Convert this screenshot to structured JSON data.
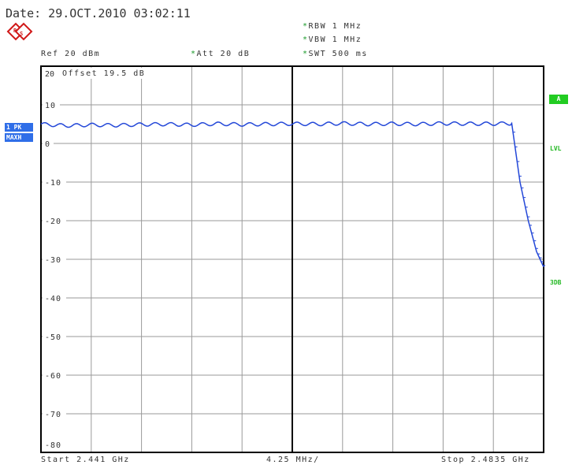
{
  "header": {
    "date": "Date: 29.OCT.2010  03:02:11",
    "rbw": "RBW 1 MHz",
    "vbw": "VBW 1 MHz",
    "swt": "SWT 500 ms",
    "ref": "Ref  20 dBm",
    "att": "Att  20 dB",
    "star": "*"
  },
  "left_panel": {
    "trace_label": "1 PK",
    "mode_label": "MAXH"
  },
  "right_panel": {
    "a_label": "A",
    "lvl_label": "LVL",
    "threedb_label": "3DB"
  },
  "footer": {
    "start": "Start 2.441 GHz",
    "span": "4.25 MHz/",
    "stop": "Stop 2.4835 GHz"
  },
  "colors": {
    "trace": "#2448d8",
    "grid": "#999999",
    "frame": "#000000",
    "badge": "#2f6ee8",
    "green": "#22b822"
  },
  "chart_data": {
    "type": "line",
    "title": "",
    "offset_label": "Offset  19.5 dB",
    "xlabel": "",
    "ylabel": "",
    "ylim": [
      -80,
      20
    ],
    "xlim": [
      2.441,
      2.4835
    ],
    "x_unit": "GHz",
    "yticks": [
      "20",
      "10",
      "0",
      "-10",
      "-20",
      "-30",
      "-40",
      "-50",
      "-60",
      "-70",
      "-80"
    ],
    "grid": true,
    "series": [
      {
        "x": [
          2.441,
          2.4431,
          2.4452,
          2.4474,
          2.4495,
          2.4516,
          2.4537,
          2.4559,
          2.458,
          2.4601,
          2.4622,
          2.4644,
          2.4665,
          2.4686,
          2.4707,
          2.4729,
          2.475,
          2.4771,
          2.4792,
          2.4808,
          2.4815,
          2.4822,
          2.4829,
          2.4835
        ],
        "y": [
          5.0,
          4.6,
          4.8,
          4.7,
          4.9,
          5.0,
          4.8,
          5.1,
          4.9,
          5.0,
          5.1,
          5.0,
          5.2,
          5.0,
          5.1,
          5.0,
          5.2,
          5.1,
          5.1,
          5.2,
          -10.0,
          -20.0,
          -28.0,
          -32.0
        ]
      }
    ]
  }
}
